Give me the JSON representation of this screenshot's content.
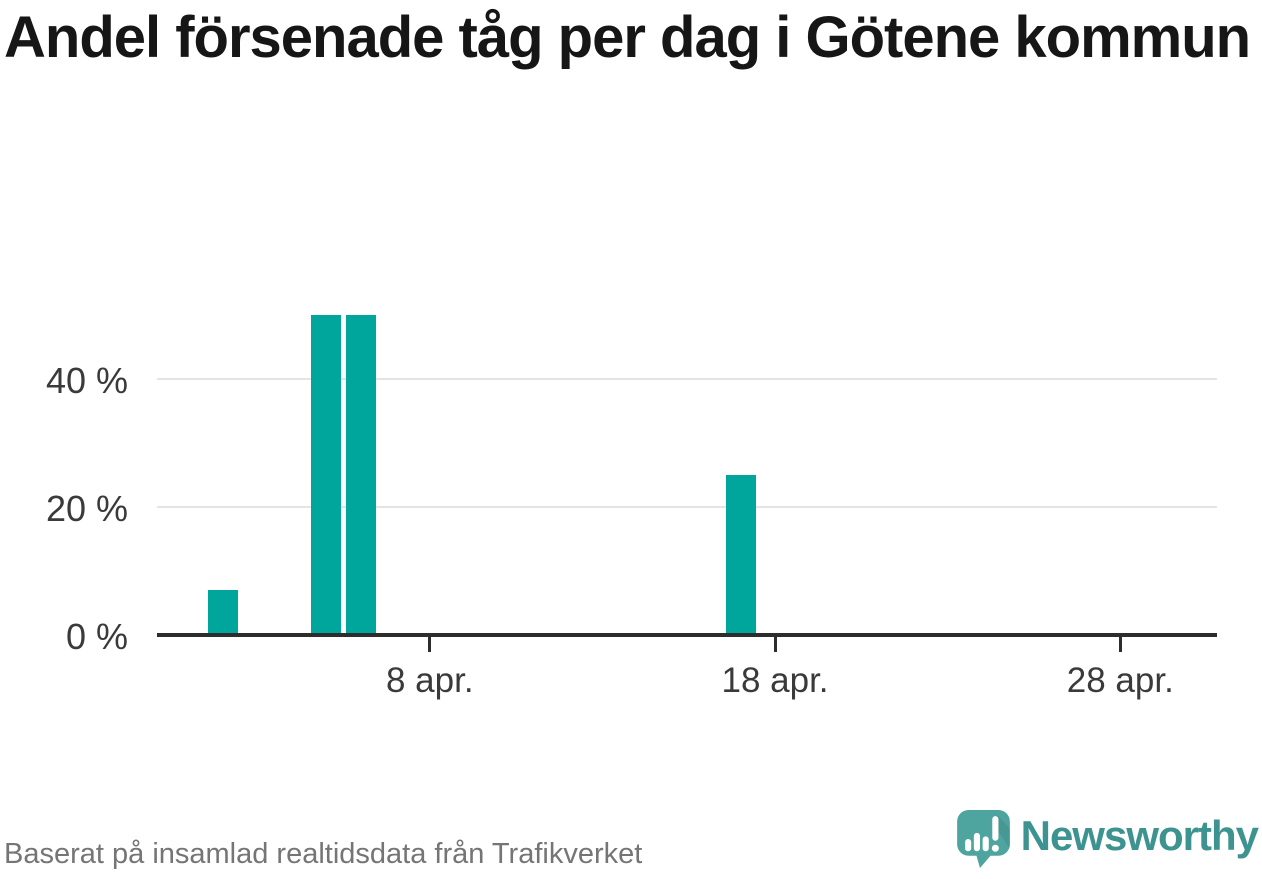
{
  "header": {
    "title": "Andel försenade tåg per dag i Götene kommun"
  },
  "chart_data": {
    "type": "bar",
    "title": "Andel försenade tåg per dag i Götene kommun",
    "categories": [
      "2 apr.",
      "5 apr.",
      "6 apr.",
      "17 apr."
    ],
    "x_days": [
      2,
      5,
      6,
      17
    ],
    "values": [
      7,
      50,
      50,
      25
    ],
    "unit": "%",
    "xlabel": "",
    "ylabel": "",
    "ylim": [
      0,
      52
    ],
    "grid": "horizontal",
    "legend": "none",
    "y_axis": {
      "ticks": [
        0,
        20,
        40
      ],
      "tick_labels": [
        "0 %",
        "20 %",
        "40 %"
      ],
      "gridlines_at": [
        20,
        40
      ]
    },
    "x_axis": {
      "tick_days": [
        8,
        18,
        28
      ],
      "tick_labels": [
        "8 apr.",
        "18 apr.",
        "28 apr."
      ],
      "domain_days": [
        0.1,
        30.8
      ]
    }
  },
  "footer": {
    "source": "Baserat på insamlad realtidsdata från Trafikverket",
    "brand": "Newsworthy"
  },
  "icons": {
    "logo": "newsworthy-speech-bubble-bar-chart-icon"
  },
  "colors": {
    "bar": "#00a69c",
    "axis": "#2d2d2d",
    "grid": "#e4e4e4",
    "tick_label": "#3a3a3a",
    "title": "#161616",
    "source_text": "#757575",
    "logo_icon": "#4ea49f",
    "brand_text": "#3d938f"
  }
}
